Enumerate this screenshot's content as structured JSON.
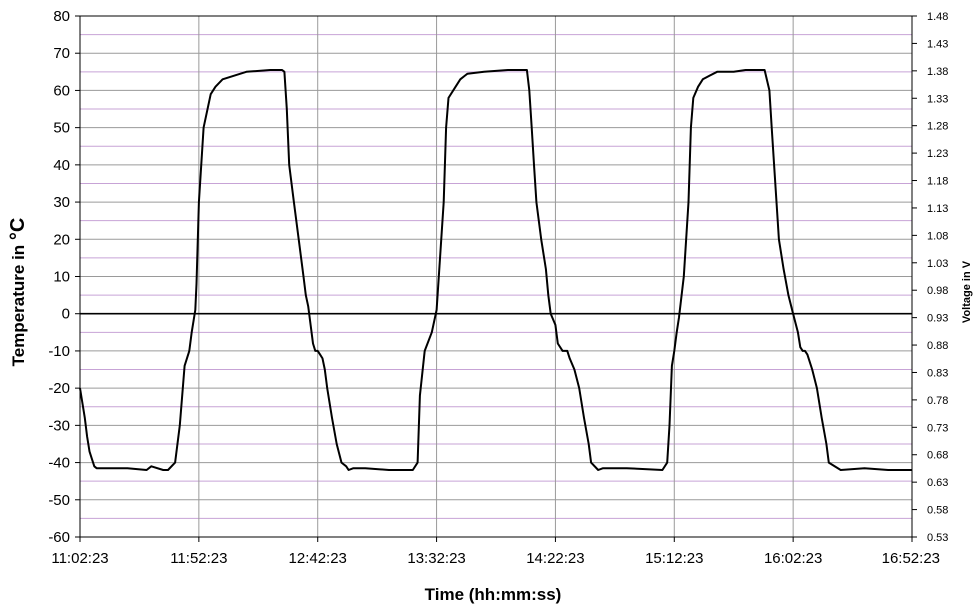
{
  "chart_data": {
    "type": "line",
    "title": "",
    "xlabel": "Time (hh:mm:ss)",
    "ylabel": "Temperature in",
    "ylabel_unit": "°C",
    "y2label": "Voltage in V",
    "x_tick_labels": [
      "11:02:23",
      "11:52:23",
      "12:42:23",
      "13:32:23",
      "14:22:23",
      "15:12:23",
      "16:02:23",
      "16:52:23"
    ],
    "x_range_minutes": [
      0,
      350
    ],
    "ylim": [
      -60,
      80
    ],
    "y_ticks": [
      -60,
      -50,
      -40,
      -30,
      -20,
      -10,
      0,
      10,
      20,
      30,
      40,
      50,
      60,
      70,
      80
    ],
    "y2lim": [
      0.53,
      1.48
    ],
    "y2_tick_labels": [
      "0.53",
      "0.58",
      "0.63",
      "0.68",
      "0.73",
      "0.78",
      "0.83",
      "0.88",
      "0.93",
      "0.98",
      "1.03",
      "1.08",
      "1.13",
      "1.18",
      "1.23",
      "1.28",
      "1.33",
      "1.38",
      "1.43",
      "1.48"
    ],
    "grid": true,
    "series": [
      {
        "color": "#000000",
        "x": [
          0,
          1,
          2,
          3,
          4,
          5,
          6,
          7,
          10,
          20,
          28,
          30,
          35,
          37,
          40,
          42,
          44,
          46,
          47,
          48,
          48.5,
          49,
          50,
          52,
          55,
          57,
          60,
          70,
          80,
          85,
          86,
          87,
          88,
          90,
          92,
          94,
          95,
          96,
          97,
          98,
          99,
          100,
          101,
          102,
          103,
          104,
          106,
          108,
          110,
          112,
          113,
          115,
          120,
          130,
          140,
          142,
          143,
          145,
          148,
          150,
          153,
          154,
          155,
          158,
          160,
          162,
          163,
          170,
          180,
          188,
          189,
          190,
          191,
          192,
          194,
          196,
          197,
          198,
          200,
          201,
          203,
          205,
          206,
          208,
          210,
          212,
          214,
          215,
          218,
          220,
          230,
          245,
          247,
          248,
          249,
          250,
          251,
          252,
          254,
          256,
          257,
          258,
          260,
          262,
          265,
          268,
          270,
          275,
          280,
          288,
          290,
          291,
          292,
          293,
          294,
          296,
          298,
          300,
          302,
          303,
          304,
          305,
          306,
          307,
          308,
          310,
          312,
          314,
          315,
          320,
          330,
          340,
          350
        ],
        "y": [
          -20,
          -24,
          -28,
          -33,
          -37,
          -39,
          -41,
          -41.5,
          -41.5,
          -41.5,
          -42,
          -41,
          -42,
          -42,
          -40,
          -30,
          -14,
          -10,
          -5,
          -1,
          1,
          8,
          30,
          50,
          59,
          61,
          63,
          65,
          65.5,
          65.5,
          65,
          55,
          40,
          30,
          20,
          10,
          5,
          2,
          -3,
          -8,
          -10,
          -10,
          -11,
          -12,
          -15,
          -20,
          -28,
          -35,
          -40,
          -41,
          -42,
          -41.5,
          -41.5,
          -42,
          -42,
          -40,
          -22,
          -10,
          -5,
          1,
          30,
          50,
          58,
          61,
          63,
          64,
          64.5,
          65,
          65.5,
          65.5,
          60,
          50,
          40,
          30,
          20,
          12,
          5,
          0,
          -3,
          -8,
          -10,
          -10,
          -12,
          -15,
          -20,
          -28,
          -35,
          -40,
          -42,
          -41.5,
          -41.5,
          -42,
          -40,
          -30,
          -14,
          -10,
          -5,
          -1,
          10,
          30,
          50,
          58,
          61,
          63,
          64,
          65,
          65,
          65,
          65.5,
          65.5,
          60,
          50,
          40,
          30,
          20,
          12,
          5,
          0,
          -5,
          -9,
          -10,
          -10,
          -11,
          -13,
          -15,
          -20,
          -28,
          -35,
          -40,
          -42,
          -41.5,
          -42,
          -42
        ]
      }
    ]
  }
}
